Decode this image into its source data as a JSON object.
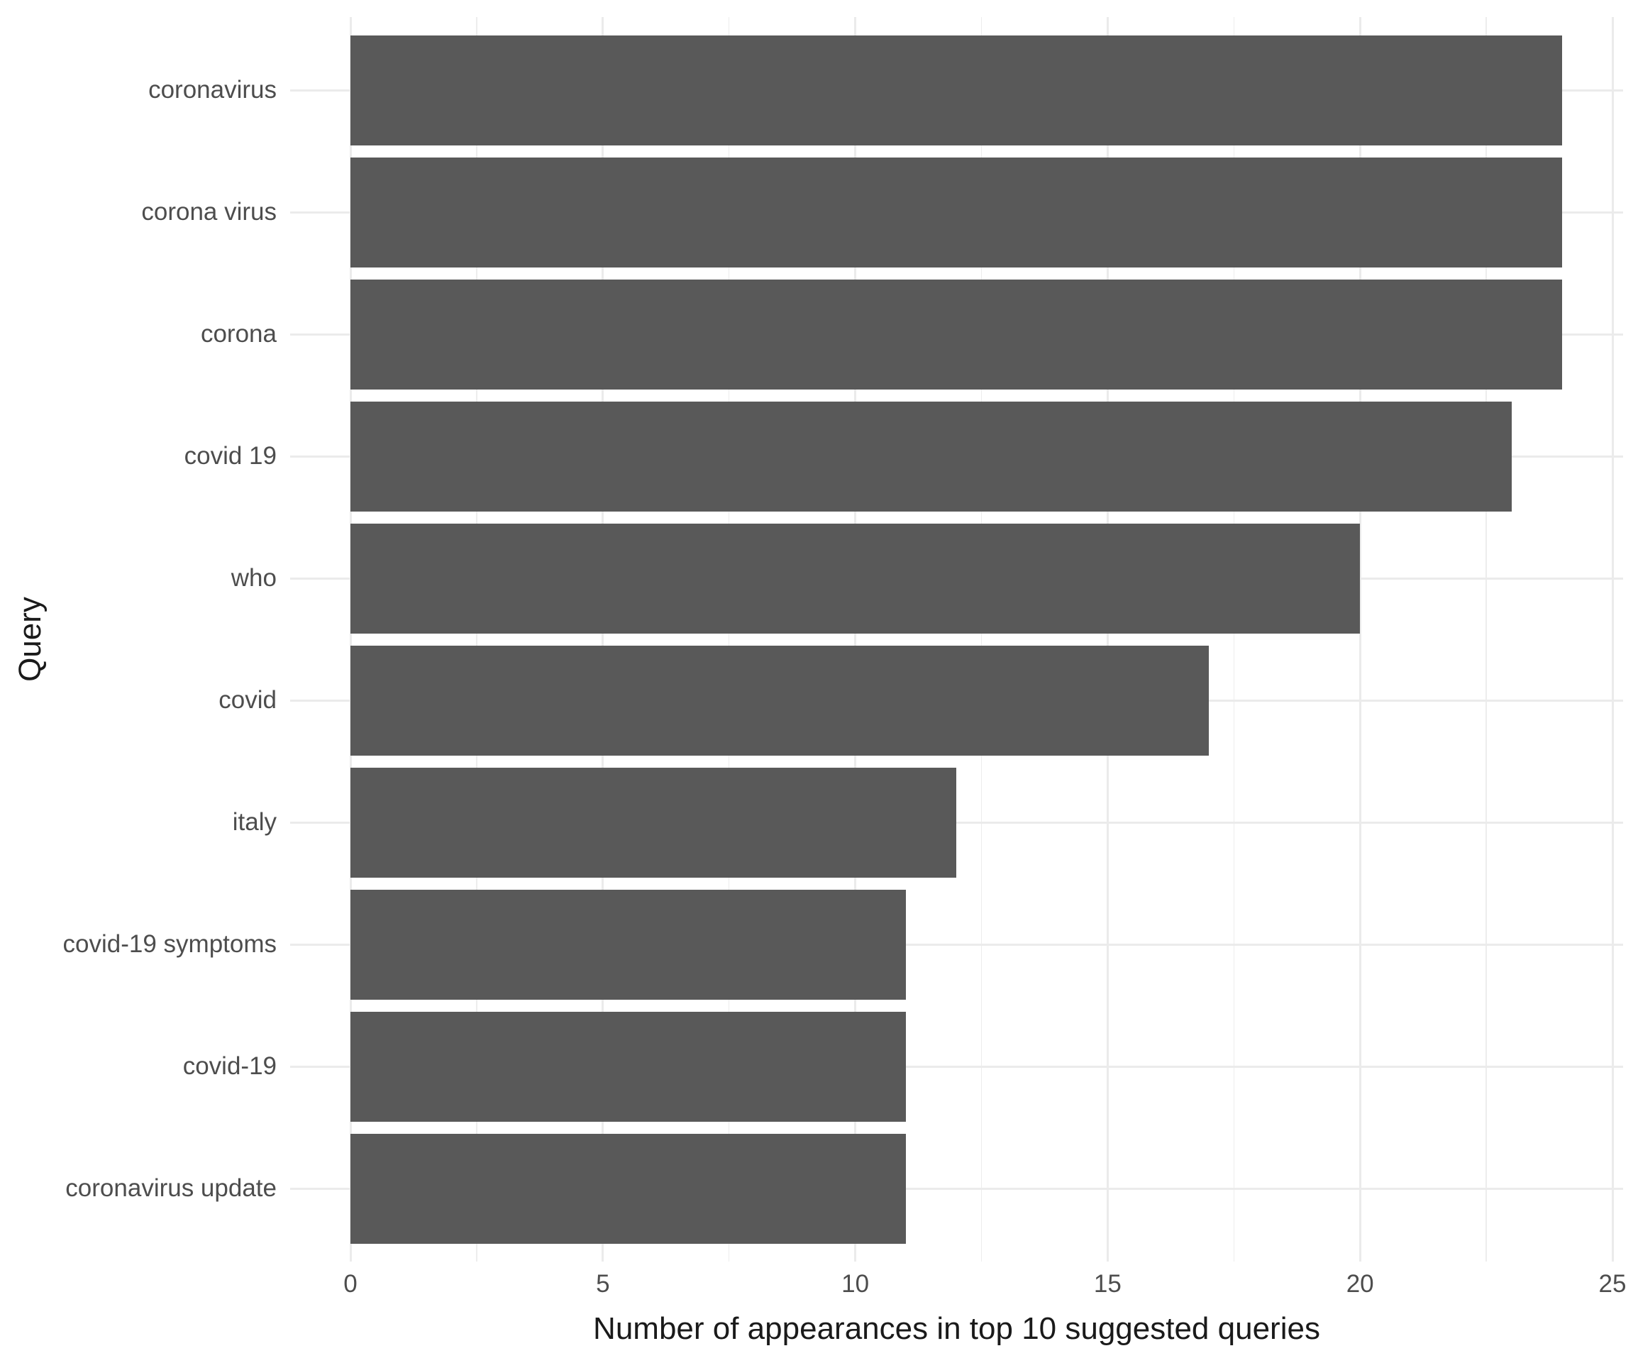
{
  "chart_data": {
    "type": "bar",
    "orientation": "horizontal",
    "title": "",
    "xlabel": "Number of appearances in top 10 suggested queries",
    "ylabel": "Query",
    "categories": [
      "coronavirus",
      "corona virus",
      "corona",
      "covid 19",
      "who",
      "covid",
      "italy",
      "covid-19 symptoms",
      "covid-19",
      "coronavirus update"
    ],
    "values": [
      24,
      24,
      24,
      23,
      20,
      17,
      12,
      11,
      11,
      11
    ],
    "xlim": [
      0,
      25
    ],
    "x_major_ticks": [
      0,
      5,
      10,
      15,
      20,
      25
    ],
    "x_tick_labels": [
      "0",
      "5",
      "10",
      "15",
      "20",
      "25"
    ],
    "x_minor_ticks": [
      2.5,
      7.5,
      12.5,
      17.5,
      22.5
    ],
    "grid": "vertical major+minor, horizontal major at category centers",
    "legend": "none",
    "colors": {
      "bar": "#595959",
      "grid_major": "#EBEBEB",
      "grid_minor": "#EDEDED",
      "axis_text": "#4D4D4D",
      "axis_title": "#1A1A1A",
      "background": "#FFFFFF"
    }
  }
}
